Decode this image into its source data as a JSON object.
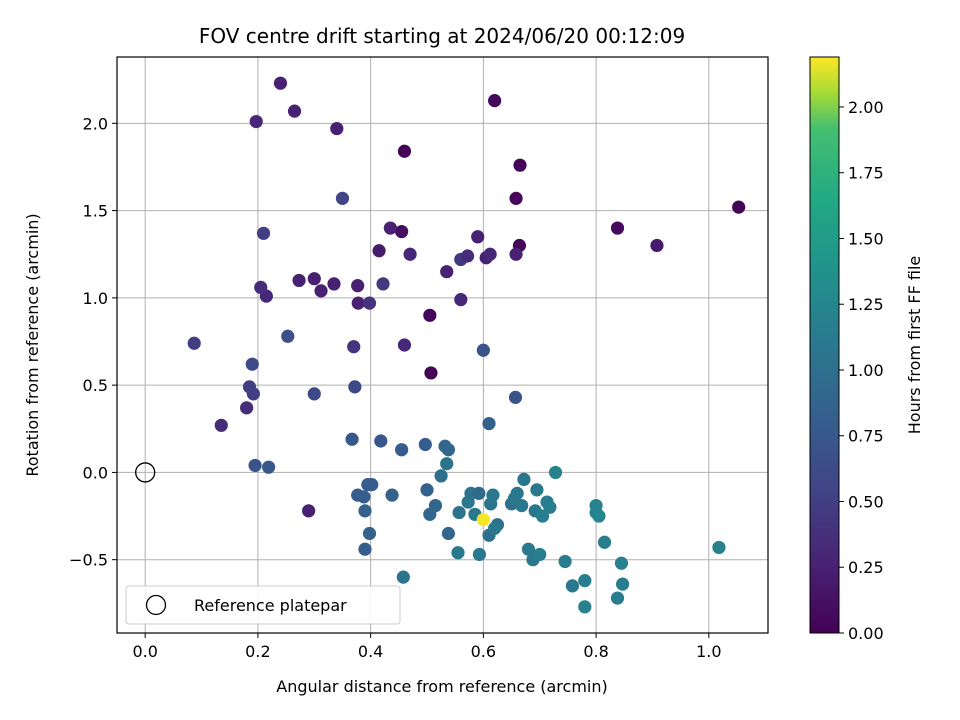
{
  "chart_data": {
    "type": "scatter",
    "title": "FOV centre drift starting at 2024/06/20 00:12:09",
    "xlabel": "Angular distance from reference (arcmin)",
    "ylabel": "Rotation from reference (arcmin)",
    "xlim": [
      -0.05,
      1.105
    ],
    "ylim": [
      -0.92,
      2.38
    ],
    "xticks": [
      0.0,
      0.2,
      0.4,
      0.6,
      0.8,
      1.0
    ],
    "xtick_labels": [
      "0.0",
      "0.2",
      "0.4",
      "0.6",
      "0.8",
      "1.0"
    ],
    "yticks": [
      -0.5,
      0.0,
      0.5,
      1.0,
      1.5,
      2.0
    ],
    "ytick_labels": [
      "−0.5",
      "0.0",
      "0.5",
      "1.0",
      "1.5",
      "2.0"
    ],
    "grid": true,
    "colormap": "viridis",
    "colorbar": {
      "label": "Hours from first FF file",
      "range": [
        0.0,
        2.19
      ],
      "ticks": [
        0.0,
        0.25,
        0.5,
        0.75,
        1.0,
        1.25,
        1.5,
        1.75,
        2.0
      ],
      "tick_labels": [
        "0.00",
        "0.25",
        "0.50",
        "0.75",
        "1.00",
        "1.25",
        "1.50",
        "1.75",
        "2.00"
      ]
    },
    "reference": {
      "x": 0.0,
      "y": 0.0,
      "label": "Reference platepar"
    },
    "legend": {
      "placement": "lower-left",
      "entries": [
        "Reference platepar"
      ]
    },
    "points": [
      {
        "x": 0.62,
        "y": 2.13,
        "t": 0.05
      },
      {
        "x": 0.46,
        "y": 1.84,
        "t": 0.03
      },
      {
        "x": 0.665,
        "y": 1.76,
        "t": 0.05
      },
      {
        "x": 0.658,
        "y": 1.57,
        "t": 0.05
      },
      {
        "x": 1.053,
        "y": 1.52,
        "t": 0.03
      },
      {
        "x": 0.838,
        "y": 1.4,
        "t": 0.08
      },
      {
        "x": 0.455,
        "y": 1.38,
        "t": 0.1
      },
      {
        "x": 0.664,
        "y": 1.3,
        "t": 0.05
      },
      {
        "x": 0.505,
        "y": 0.9,
        "t": 0.05
      },
      {
        "x": 0.507,
        "y": 0.57,
        "t": 0.03
      },
      {
        "x": 0.24,
        "y": 2.23,
        "t": 0.25
      },
      {
        "x": 0.265,
        "y": 2.07,
        "t": 0.25
      },
      {
        "x": 0.197,
        "y": 2.01,
        "t": 0.3
      },
      {
        "x": 0.34,
        "y": 1.97,
        "t": 0.25
      },
      {
        "x": 0.415,
        "y": 1.27,
        "t": 0.2
      },
      {
        "x": 0.435,
        "y": 1.4,
        "t": 0.25
      },
      {
        "x": 0.47,
        "y": 1.25,
        "t": 0.3
      },
      {
        "x": 0.59,
        "y": 1.35,
        "t": 0.25
      },
      {
        "x": 0.605,
        "y": 1.23,
        "t": 0.25
      },
      {
        "x": 0.612,
        "y": 1.25,
        "t": 0.3
      },
      {
        "x": 0.908,
        "y": 1.3,
        "t": 0.2
      },
      {
        "x": 0.658,
        "y": 1.25,
        "t": 0.25
      },
      {
        "x": 0.535,
        "y": 1.15,
        "t": 0.25
      },
      {
        "x": 0.56,
        "y": 0.99,
        "t": 0.3
      },
      {
        "x": 0.46,
        "y": 0.73,
        "t": 0.3
      },
      {
        "x": 0.273,
        "y": 1.1,
        "t": 0.25
      },
      {
        "x": 0.3,
        "y": 1.11,
        "t": 0.25
      },
      {
        "x": 0.312,
        "y": 1.04,
        "t": 0.25
      },
      {
        "x": 0.335,
        "y": 1.08,
        "t": 0.25
      },
      {
        "x": 0.377,
        "y": 1.07,
        "t": 0.25
      },
      {
        "x": 0.378,
        "y": 0.97,
        "t": 0.25
      },
      {
        "x": 0.29,
        "y": -0.22,
        "t": 0.25
      },
      {
        "x": 0.215,
        "y": 1.01,
        "t": 0.3
      },
      {
        "x": 0.205,
        "y": 1.06,
        "t": 0.35
      },
      {
        "x": 0.135,
        "y": 0.27,
        "t": 0.35
      },
      {
        "x": 0.18,
        "y": 0.37,
        "t": 0.35
      },
      {
        "x": 0.398,
        "y": 0.97,
        "t": 0.4
      },
      {
        "x": 0.422,
        "y": 1.08,
        "t": 0.45
      },
      {
        "x": 0.56,
        "y": 1.22,
        "t": 0.45
      },
      {
        "x": 0.572,
        "y": 1.24,
        "t": 0.35
      },
      {
        "x": 0.37,
        "y": 0.72,
        "t": 0.4
      },
      {
        "x": 0.21,
        "y": 1.37,
        "t": 0.5
      },
      {
        "x": 0.35,
        "y": 1.57,
        "t": 0.55
      },
      {
        "x": 0.087,
        "y": 0.74,
        "t": 0.5
      },
      {
        "x": 0.185,
        "y": 0.49,
        "t": 0.5
      },
      {
        "x": 0.192,
        "y": 0.45,
        "t": 0.5
      },
      {
        "x": 0.19,
        "y": 0.62,
        "t": 0.6
      },
      {
        "x": 0.253,
        "y": 0.78,
        "t": 0.65
      },
      {
        "x": 0.3,
        "y": 0.45,
        "t": 0.6
      },
      {
        "x": 0.372,
        "y": 0.49,
        "t": 0.6
      },
      {
        "x": 0.6,
        "y": 0.7,
        "t": 0.7
      },
      {
        "x": 0.657,
        "y": 0.43,
        "t": 0.7
      },
      {
        "x": 0.195,
        "y": 0.04,
        "t": 0.7
      },
      {
        "x": 0.219,
        "y": 0.03,
        "t": 0.75
      },
      {
        "x": 0.367,
        "y": 0.19,
        "t": 0.75
      },
      {
        "x": 0.418,
        "y": 0.18,
        "t": 0.75
      },
      {
        "x": 0.455,
        "y": 0.13,
        "t": 0.8
      },
      {
        "x": 0.497,
        "y": 0.16,
        "t": 0.8
      },
      {
        "x": 0.532,
        "y": 0.15,
        "t": 0.9
      },
      {
        "x": 0.538,
        "y": 0.13,
        "t": 0.9
      },
      {
        "x": 0.61,
        "y": 0.28,
        "t": 0.85
      },
      {
        "x": 0.525,
        "y": -0.02,
        "t": 1.0
      },
      {
        "x": 0.535,
        "y": 0.05,
        "t": 1.05
      },
      {
        "x": 0.377,
        "y": -0.13,
        "t": 0.8
      },
      {
        "x": 0.388,
        "y": -0.14,
        "t": 0.8
      },
      {
        "x": 0.395,
        "y": -0.07,
        "t": 0.8
      },
      {
        "x": 0.402,
        "y": -0.07,
        "t": 0.8
      },
      {
        "x": 0.39,
        "y": -0.22,
        "t": 0.85
      },
      {
        "x": 0.398,
        "y": -0.35,
        "t": 0.85
      },
      {
        "x": 0.39,
        "y": -0.44,
        "t": 0.8
      },
      {
        "x": 0.438,
        "y": -0.13,
        "t": 0.85
      },
      {
        "x": 0.5,
        "y": -0.1,
        "t": 0.85
      },
      {
        "x": 0.505,
        "y": -0.24,
        "t": 0.9
      },
      {
        "x": 0.515,
        "y": -0.19,
        "t": 0.9
      },
      {
        "x": 0.538,
        "y": -0.35,
        "t": 0.9
      },
      {
        "x": 0.458,
        "y": -0.6,
        "t": 1.05
      },
      {
        "x": 0.555,
        "y": -0.46,
        "t": 1.1
      },
      {
        "x": 0.557,
        "y": -0.23,
        "t": 1.05
      },
      {
        "x": 0.573,
        "y": -0.17,
        "t": 1.1
      },
      {
        "x": 0.578,
        "y": -0.12,
        "t": 1.05
      },
      {
        "x": 0.585,
        "y": -0.24,
        "t": 1.1
      },
      {
        "x": 0.592,
        "y": -0.12,
        "t": 0.95
      },
      {
        "x": 0.593,
        "y": -0.47,
        "t": 1.1
      },
      {
        "x": 0.61,
        "y": -0.36,
        "t": 1.0
      },
      {
        "x": 0.613,
        "y": -0.18,
        "t": 1.05
      },
      {
        "x": 0.617,
        "y": -0.13,
        "t": 1.1
      },
      {
        "x": 0.625,
        "y": -0.3,
        "t": 1.0
      },
      {
        "x": 0.62,
        "y": -0.32,
        "t": 1.1
      },
      {
        "x": 0.65,
        "y": -0.18,
        "t": 1.0
      },
      {
        "x": 0.655,
        "y": -0.15,
        "t": 1.1
      },
      {
        "x": 0.66,
        "y": -0.12,
        "t": 1.1
      },
      {
        "x": 0.668,
        "y": -0.19,
        "t": 1.1
      },
      {
        "x": 0.672,
        "y": -0.04,
        "t": 1.1
      },
      {
        "x": 0.68,
        "y": -0.44,
        "t": 1.1
      },
      {
        "x": 0.688,
        "y": -0.5,
        "t": 1.1
      },
      {
        "x": 0.692,
        "y": -0.22,
        "t": 1.1
      },
      {
        "x": 0.695,
        "y": -0.1,
        "t": 1.1
      },
      {
        "x": 0.7,
        "y": -0.47,
        "t": 1.15
      },
      {
        "x": 0.705,
        "y": -0.25,
        "t": 1.15
      },
      {
        "x": 0.713,
        "y": -0.17,
        "t": 1.15
      },
      {
        "x": 0.718,
        "y": -0.2,
        "t": 1.15
      },
      {
        "x": 0.728,
        "y": 0.0,
        "t": 1.2
      },
      {
        "x": 0.745,
        "y": -0.51,
        "t": 1.15
      },
      {
        "x": 0.758,
        "y": -0.65,
        "t": 1.1
      },
      {
        "x": 0.78,
        "y": -0.62,
        "t": 1.15
      },
      {
        "x": 0.78,
        "y": -0.77,
        "t": 1.2
      },
      {
        "x": 0.8,
        "y": -0.19,
        "t": 1.2
      },
      {
        "x": 0.8,
        "y": -0.23,
        "t": 1.2
      },
      {
        "x": 0.805,
        "y": -0.25,
        "t": 1.25
      },
      {
        "x": 0.815,
        "y": -0.4,
        "t": 1.15
      },
      {
        "x": 0.838,
        "y": -0.72,
        "t": 1.15
      },
      {
        "x": 0.845,
        "y": -0.52,
        "t": 1.2
      },
      {
        "x": 0.847,
        "y": -0.64,
        "t": 1.15
      },
      {
        "x": 1.018,
        "y": -0.43,
        "t": 1.2
      },
      {
        "x": 0.6,
        "y": -0.27,
        "t": 2.18
      }
    ]
  }
}
